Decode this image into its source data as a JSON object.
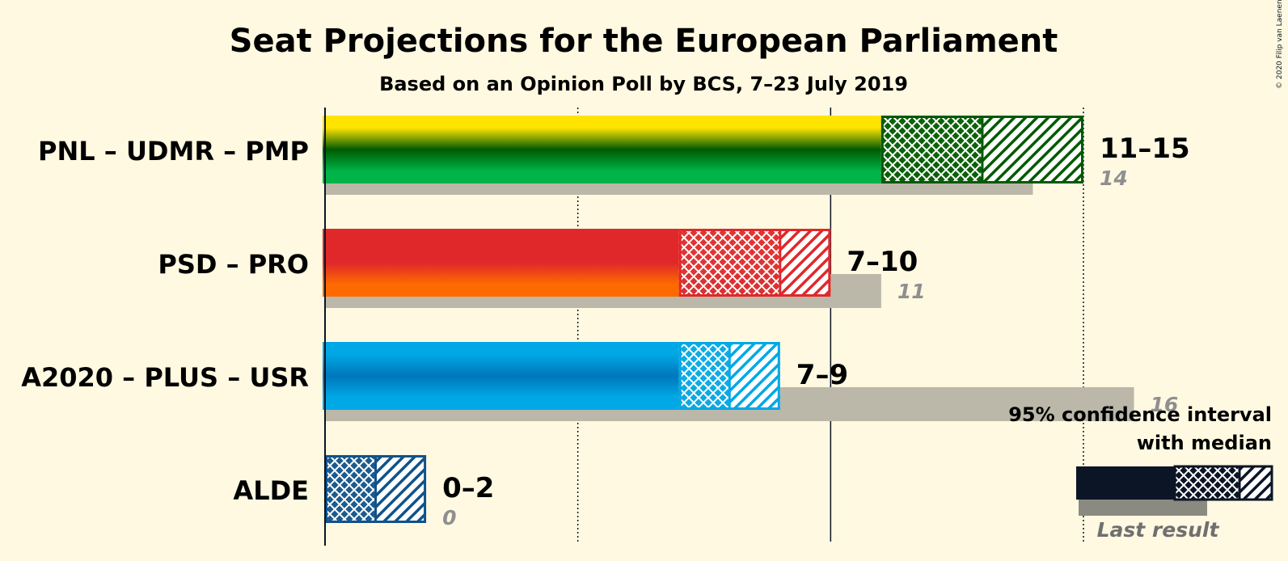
{
  "chart_data": {
    "type": "bar",
    "title": "Seat Projections for the European Parliament",
    "subtitle": "Based on an Opinion Poll by BCS, 7–23 July 2019",
    "copyright": "© 2020 Filip van Laenen",
    "xlim": [
      0,
      16.8
    ],
    "gridlines": [
      5,
      10,
      15
    ],
    "series": [
      {
        "party": "PNL – UDMR – PMP",
        "low": 11,
        "median": 13,
        "high": 15,
        "label": "11–15",
        "last": 14,
        "last_label": "14",
        "colors": [
          "#FFE400",
          "#005A00",
          "#00B44A"
        ],
        "hatch": "#005A00"
      },
      {
        "party": "PSD – PRO",
        "low": 7,
        "median": 9,
        "high": 10,
        "label": "7–10",
        "last": 11,
        "last_label": "11",
        "colors": [
          "#E0282A",
          "#E0282A",
          "#FF6A00"
        ],
        "hatch": "#E0282A"
      },
      {
        "party": "A2020 – PLUS – USR",
        "low": 7,
        "median": 8,
        "high": 9,
        "label": "7–9",
        "last": 16,
        "last_label": "16",
        "colors": [
          "#00A8E6",
          "#0077BB",
          "#00A8E6"
        ],
        "hatch": "#00A8E6"
      },
      {
        "party": "ALDE",
        "low": 0,
        "median": 1,
        "high": 2,
        "label": "0–2",
        "last": 0,
        "last_label": "0",
        "colors": [
          "#10528A",
          "#10528A",
          "#10528A"
        ],
        "hatch": "#10528A"
      }
    ],
    "legend": {
      "line1": "95% confidence interval",
      "line2": "with median",
      "last_result": "Last result"
    }
  }
}
